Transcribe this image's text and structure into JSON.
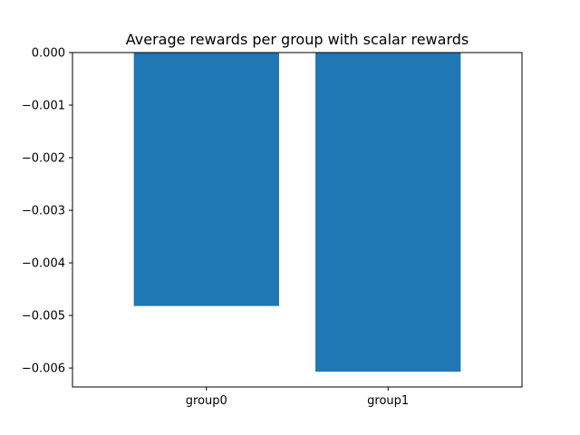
{
  "chart_data": {
    "type": "bar",
    "title": "Average rewards per group with scalar rewards",
    "xlabel": "",
    "ylabel": "",
    "categories": [
      "group0",
      "group1"
    ],
    "values": [
      -0.00482,
      -0.00607
    ],
    "ylim": [
      -0.00636,
      0.0
    ],
    "yticks": [
      0.0,
      -0.001,
      -0.002,
      -0.003,
      -0.004,
      -0.005,
      -0.006
    ],
    "ytick_labels": [
      "0.000",
      "−0.001",
      "−0.002",
      "−0.003",
      "−0.004",
      "−0.005",
      "−0.006"
    ],
    "grid": false,
    "legend": "none",
    "bar_color": "#1f77b4"
  }
}
